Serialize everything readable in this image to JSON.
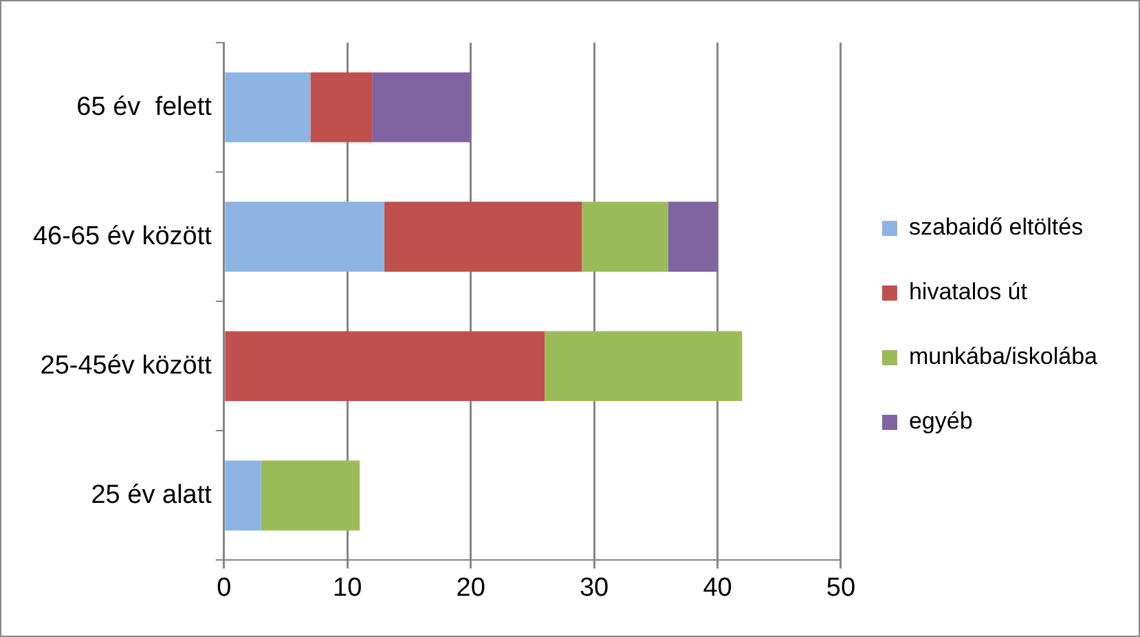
{
  "chart_data": {
    "type": "bar",
    "orientation": "horizontal",
    "stacked": true,
    "categories": [
      "65 év  felett",
      "46-65 év között",
      "25-45év között",
      "25 év alatt"
    ],
    "series": [
      {
        "name": "szabaidő eltöltés",
        "color": "#8eb4e3",
        "values": [
          7,
          13,
          0,
          3
        ]
      },
      {
        "name": "hivatalos út",
        "color": "#c0504d",
        "values": [
          5,
          16,
          26,
          0
        ]
      },
      {
        "name": "munkába/iskolába",
        "color": "#9bbb59",
        "values": [
          0,
          7,
          16,
          8
        ]
      },
      {
        "name": "egyéb",
        "color": "#8064a2",
        "values": [
          8,
          4,
          0,
          0
        ]
      }
    ],
    "xlim": [
      0,
      50
    ],
    "xticks": [
      0,
      10,
      20,
      30,
      40,
      50
    ],
    "grid": "x",
    "legend": "right"
  }
}
